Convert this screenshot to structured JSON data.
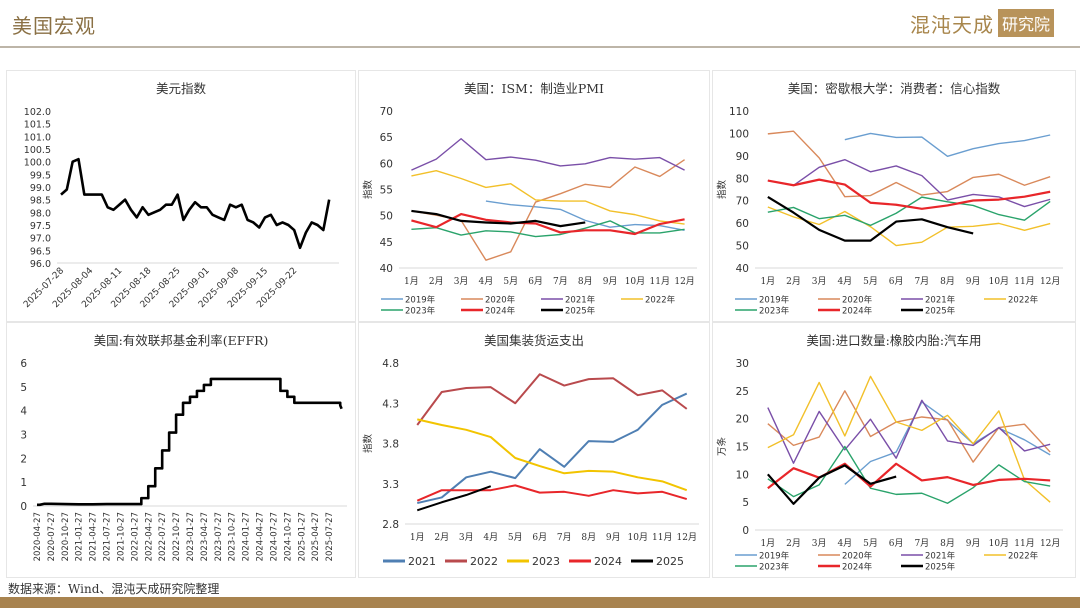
{
  "header": {
    "title": "美国宏观",
    "brand_main": "混沌天成",
    "brand_box": "研究院"
  },
  "footer": {
    "source": "数据来源：Wind、混沌天成研究院整理"
  },
  "colors": {
    "y2019": "#6a9ed0",
    "y2020": "#d9895b",
    "y2021": "#7a4fa8",
    "y2022": "#f2c02a",
    "y2023": "#2aa36b",
    "y2024": "#e8262a",
    "y2025": "#000000",
    "ship2021": "#4f7fb3",
    "ship2022": "#b94a4d",
    "ship2023": "#f2c400",
    "ship2024": "#e8262a",
    "ship2025": "#000000"
  },
  "chart_data": [
    {
      "id": "dxy",
      "type": "line",
      "title": "美元指数",
      "xlabel": "",
      "ylabel": "",
      "ylim": [
        96.0,
        102.0
      ],
      "yticks": [
        "96.0",
        "96.5",
        "97.0",
        "97.5",
        "98.0",
        "98.5",
        "99.0",
        "99.5",
        "100.0",
        "100.5",
        "101.0",
        "101.5",
        "102.0"
      ],
      "xticks": [
        "2025-07-28",
        "2025-08-04",
        "2025-08-11",
        "2025-08-18",
        "2025-08-25",
        "2025-09-01",
        "2025-09-08",
        "2025-09-15",
        "2025-09-22"
      ],
      "grid": false,
      "legend": "none",
      "series": [
        {
          "name": "美元指数",
          "color": "#000000",
          "x": [
            0,
            1,
            2,
            3,
            4,
            5,
            6,
            7,
            8,
            9,
            10,
            11,
            12,
            13,
            14,
            15,
            16,
            17,
            18,
            19,
            20,
            21,
            22,
            23,
            24,
            25,
            26,
            27,
            28,
            29,
            30,
            31,
            32,
            33,
            34,
            35,
            36,
            37,
            38,
            39,
            40,
            41,
            42,
            43,
            44,
            45,
            46
          ],
          "values": [
            98.7,
            98.9,
            100.0,
            100.1,
            98.7,
            98.7,
            98.7,
            98.7,
            98.2,
            98.1,
            98.3,
            98.5,
            98.1,
            97.8,
            98.2,
            97.9,
            98.0,
            98.1,
            98.3,
            98.3,
            98.7,
            97.7,
            98.1,
            98.4,
            98.2,
            98.2,
            97.9,
            97.8,
            97.7,
            98.3,
            98.2,
            98.3,
            97.7,
            97.6,
            97.4,
            97.8,
            97.9,
            97.5,
            97.6,
            97.5,
            97.3,
            96.6,
            97.2,
            97.6,
            97.5,
            97.3,
            98.5
          ]
        }
      ]
    },
    {
      "id": "pmi",
      "type": "line",
      "title": "美国：ISM：制造业PMI",
      "xlabel": "",
      "ylabel": "指数",
      "ylim": [
        40,
        70
      ],
      "yticks": [
        "40",
        "45",
        "50",
        "55",
        "60",
        "65",
        "70"
      ],
      "categories": [
        "1月",
        "2月",
        "3月",
        "4月",
        "5月",
        "6月",
        "7月",
        "8月",
        "9月",
        "10月",
        "11月",
        "12月"
      ],
      "grid": false,
      "legend": "bottom",
      "series": [
        {
          "name": "2019年",
          "color": "#6a9ed0",
          "width": 1.4,
          "values": [
            null,
            null,
            null,
            52.8,
            52.1,
            51.7,
            51.2,
            49.1,
            47.8,
            48.3,
            48.1,
            47.2
          ]
        },
        {
          "name": "2020年",
          "color": "#d9895b",
          "width": 1.4,
          "values": [
            50.9,
            50.1,
            49.1,
            41.5,
            43.1,
            52.6,
            54.2,
            56.0,
            55.4,
            59.3,
            57.5,
            60.7
          ]
        },
        {
          "name": "2021年",
          "color": "#7a4fa8",
          "width": 1.4,
          "values": [
            58.7,
            60.8,
            64.7,
            60.7,
            61.2,
            60.6,
            59.5,
            59.9,
            61.1,
            60.8,
            61.1,
            58.7
          ]
        },
        {
          "name": "2022年",
          "color": "#f2c02a",
          "width": 1.4,
          "values": [
            57.6,
            58.6,
            57.1,
            55.4,
            56.1,
            53.0,
            52.8,
            52.8,
            50.9,
            50.2,
            49.0,
            48.4
          ]
        },
        {
          "name": "2023年",
          "color": "#2aa36b",
          "width": 1.4,
          "values": [
            47.4,
            47.7,
            46.3,
            47.1,
            46.9,
            46.0,
            46.4,
            47.6,
            49.0,
            46.7,
            46.7,
            47.4
          ]
        },
        {
          "name": "2024年",
          "color": "#e8262a",
          "width": 2.2,
          "values": [
            49.1,
            47.8,
            50.3,
            49.2,
            48.7,
            48.5,
            46.8,
            47.2,
            47.2,
            46.5,
            48.4,
            49.3
          ]
        },
        {
          "name": "2025年",
          "color": "#000000",
          "width": 2.2,
          "values": [
            50.9,
            50.3,
            49.0,
            48.7,
            48.5,
            49.0,
            48.0,
            48.7,
            null,
            null,
            null,
            null
          ]
        }
      ]
    },
    {
      "id": "umich",
      "type": "line",
      "title": "美国：密歇根大学：消费者：信心指数",
      "xlabel": "",
      "ylabel": "指数",
      "ylim": [
        40,
        110
      ],
      "yticks": [
        "40",
        "50",
        "60",
        "70",
        "80",
        "90",
        "100",
        "110"
      ],
      "categories": [
        "1月",
        "2月",
        "3月",
        "4月",
        "5月",
        "6月",
        "7月",
        "8月",
        "9月",
        "10月",
        "11月",
        "12月"
      ],
      "grid": false,
      "legend": "bottom",
      "series": [
        {
          "name": "2019年",
          "color": "#6a9ed0",
          "width": 1.4,
          "values": [
            null,
            null,
            null,
            97.2,
            100.0,
            98.2,
            98.4,
            89.8,
            93.2,
            95.5,
            96.8,
            99.3
          ]
        },
        {
          "name": "2020年",
          "color": "#d9895b",
          "width": 1.4,
          "values": [
            99.8,
            101.0,
            89.1,
            71.8,
            72.3,
            78.1,
            72.5,
            74.1,
            80.4,
            81.8,
            76.9,
            80.7
          ]
        },
        {
          "name": "2021年",
          "color": "#7a4fa8",
          "width": 1.4,
          "values": [
            79.0,
            76.8,
            84.9,
            88.3,
            82.9,
            85.5,
            81.2,
            70.3,
            72.8,
            71.7,
            67.4,
            70.6
          ]
        },
        {
          "name": "2022年",
          "color": "#f2c02a",
          "width": 1.4,
          "values": [
            67.2,
            62.8,
            59.4,
            65.2,
            58.4,
            50.0,
            51.5,
            58.2,
            58.6,
            59.9,
            56.8,
            59.8
          ]
        },
        {
          "name": "2023年",
          "color": "#2aa36b",
          "width": 1.4,
          "values": [
            64.9,
            67.0,
            62.0,
            63.5,
            59.0,
            64.4,
            71.6,
            69.5,
            67.9,
            63.8,
            61.3,
            69.7
          ]
        },
        {
          "name": "2024年",
          "color": "#e8262a",
          "width": 2.2,
          "values": [
            79.0,
            76.9,
            79.4,
            77.2,
            69.1,
            68.2,
            66.4,
            67.9,
            70.1,
            70.5,
            71.8,
            74.0
          ]
        },
        {
          "name": "2025年",
          "color": "#000000",
          "width": 2.2,
          "values": [
            71.7,
            64.7,
            57.0,
            52.2,
            52.2,
            60.7,
            61.7,
            58.2,
            55.4,
            null,
            null,
            null
          ]
        }
      ]
    },
    {
      "id": "effr",
      "type": "line",
      "title": "美国:有效联邦基金利率(EFFR)",
      "xlabel": "",
      "ylabel": "",
      "ylim": [
        0,
        6
      ],
      "yticks": [
        "0",
        "1",
        "2",
        "3",
        "4",
        "5",
        "6"
      ],
      "xticks": [
        "2020-04-27",
        "2020-07-27",
        "2020-10-27",
        "2021-01-27",
        "2021-04-27",
        "2021-07-27",
        "2021-10-27",
        "2022-01-27",
        "2022-04-27",
        "2022-07-27",
        "2022-10-27",
        "2023-01-27",
        "2023-04-27",
        "2023-07-27",
        "2023-10-27",
        "2024-01-27",
        "2024-04-27",
        "2024-07-27",
        "2024-10-27",
        "2025-01-27",
        "2025-04-27",
        "2025-07-27"
      ],
      "grid": false,
      "legend": "none",
      "series": [
        {
          "name": "EFFR",
          "color": "#000000",
          "x": [
            0,
            0.2,
            0.5,
            1,
            2,
            3,
            4,
            5,
            6,
            7,
            7.5,
            7.5,
            8,
            8,
            8.5,
            8.5,
            9,
            9,
            9.5,
            9.5,
            10,
            10,
            10.5,
            10.5,
            11,
            11,
            11.5,
            11.5,
            12,
            12,
            12.5,
            12.5,
            13,
            13,
            17.5,
            17.5,
            18,
            18,
            18.5,
            18.5,
            19,
            21.8,
            21.8,
            21.9
          ],
          "values": [
            0.05,
            0.05,
            0.09,
            0.09,
            0.08,
            0.07,
            0.07,
            0.08,
            0.08,
            0.08,
            0.08,
            0.33,
            0.33,
            0.83,
            0.83,
            1.58,
            1.58,
            2.33,
            2.33,
            3.08,
            3.08,
            3.83,
            3.83,
            4.33,
            4.33,
            4.58,
            4.58,
            4.83,
            4.83,
            5.08,
            5.08,
            5.33,
            5.33,
            5.33,
            5.33,
            4.83,
            4.83,
            4.58,
            4.58,
            4.33,
            4.33,
            4.33,
            4.22,
            4.08
          ]
        }
      ]
    },
    {
      "id": "container",
      "type": "line",
      "title": "美国集装货运支出",
      "xlabel": "",
      "ylabel": "指数",
      "ylim": [
        2.8,
        4.8
      ],
      "yticks": [
        "2.8",
        "3.3",
        "3.8",
        "4.3",
        "4.8"
      ],
      "categories": [
        "1月",
        "2月",
        "3月",
        "4月",
        "5月",
        "6月",
        "7月",
        "8月",
        "9月",
        "10月",
        "11月",
        "12月"
      ],
      "grid": false,
      "legend": "bottom",
      "series": [
        {
          "name": "2021",
          "color": "#4f7fb3",
          "width": 2,
          "values": [
            3.06,
            3.13,
            3.38,
            3.45,
            3.37,
            3.73,
            3.51,
            3.83,
            3.82,
            3.97,
            4.28,
            4.42
          ]
        },
        {
          "name": "2022",
          "color": "#b94a4d",
          "width": 2,
          "values": [
            4.03,
            4.44,
            4.49,
            4.5,
            4.3,
            4.66,
            4.52,
            4.6,
            4.61,
            4.4,
            4.46,
            4.23
          ]
        },
        {
          "name": "2023",
          "color": "#f2c400",
          "width": 2,
          "values": [
            4.1,
            4.03,
            3.97,
            3.88,
            3.62,
            3.52,
            3.43,
            3.46,
            3.45,
            3.38,
            3.33,
            3.22
          ]
        },
        {
          "name": "2024",
          "color": "#e8262a",
          "width": 2,
          "values": [
            3.09,
            3.22,
            3.22,
            3.22,
            3.28,
            3.19,
            3.2,
            3.15,
            3.22,
            3.18,
            3.2,
            3.11
          ]
        },
        {
          "name": "2025",
          "color": "#000000",
          "width": 2,
          "values": [
            2.97,
            3.07,
            3.16,
            3.27,
            null,
            null,
            null,
            null,
            null,
            null,
            null,
            null
          ]
        }
      ]
    },
    {
      "id": "tires",
      "type": "line",
      "title": "美国:进口数量:橡胶内胎:汽车用",
      "xlabel": "",
      "ylabel": "万条",
      "ylim": [
        0,
        30
      ],
      "yticks": [
        "0",
        "5",
        "10",
        "15",
        "20",
        "25",
        "30"
      ],
      "categories": [
        "1月",
        "2月",
        "3月",
        "4月",
        "5月",
        "6月",
        "7月",
        "8月",
        "9月",
        "10月",
        "11月",
        "12月"
      ],
      "grid": false,
      "legend": "bottom",
      "series": [
        {
          "name": "2019年",
          "color": "#6a9ed0",
          "width": 1.4,
          "values": [
            null,
            null,
            null,
            8.2,
            12.3,
            14.0,
            23.0,
            19.7,
            15.5,
            18.3,
            16.2,
            13.5
          ]
        },
        {
          "name": "2020年",
          "color": "#d9895b",
          "width": 1.4,
          "values": [
            19.1,
            15.2,
            16.7,
            25.0,
            16.8,
            19.4,
            20.3,
            19.8,
            12.2,
            18.4,
            19.0,
            14.0
          ]
        },
        {
          "name": "2021年",
          "color": "#7a4fa8",
          "width": 1.4,
          "values": [
            22.0,
            12.0,
            21.3,
            14.4,
            19.9,
            12.9,
            23.3,
            16.0,
            15.2,
            18.4,
            14.2,
            15.4
          ]
        },
        {
          "name": "2022年",
          "color": "#f2c02a",
          "width": 1.4,
          "values": [
            14.8,
            17.1,
            26.5,
            16.9,
            27.6,
            19.4,
            17.9,
            20.6,
            15.5,
            21.4,
            9.0,
            5.0
          ]
        },
        {
          "name": "2023年",
          "color": "#2aa36b",
          "width": 1.4,
          "values": [
            9.2,
            6.0,
            8.1,
            15.0,
            7.5,
            6.4,
            6.6,
            4.8,
            7.6,
            11.7,
            8.7,
            7.9
          ]
        },
        {
          "name": "2024年",
          "color": "#e8262a",
          "width": 2.2,
          "values": [
            7.5,
            11.1,
            9.4,
            11.9,
            7.8,
            11.9,
            8.9,
            9.5,
            8.1,
            9.0,
            9.2,
            8.9
          ]
        },
        {
          "name": "2025年",
          "color": "#000000",
          "width": 2.2,
          "values": [
            10.0,
            4.7,
            9.4,
            11.6,
            8.3,
            9.6,
            null,
            null,
            null,
            null,
            null,
            null
          ]
        }
      ]
    }
  ]
}
